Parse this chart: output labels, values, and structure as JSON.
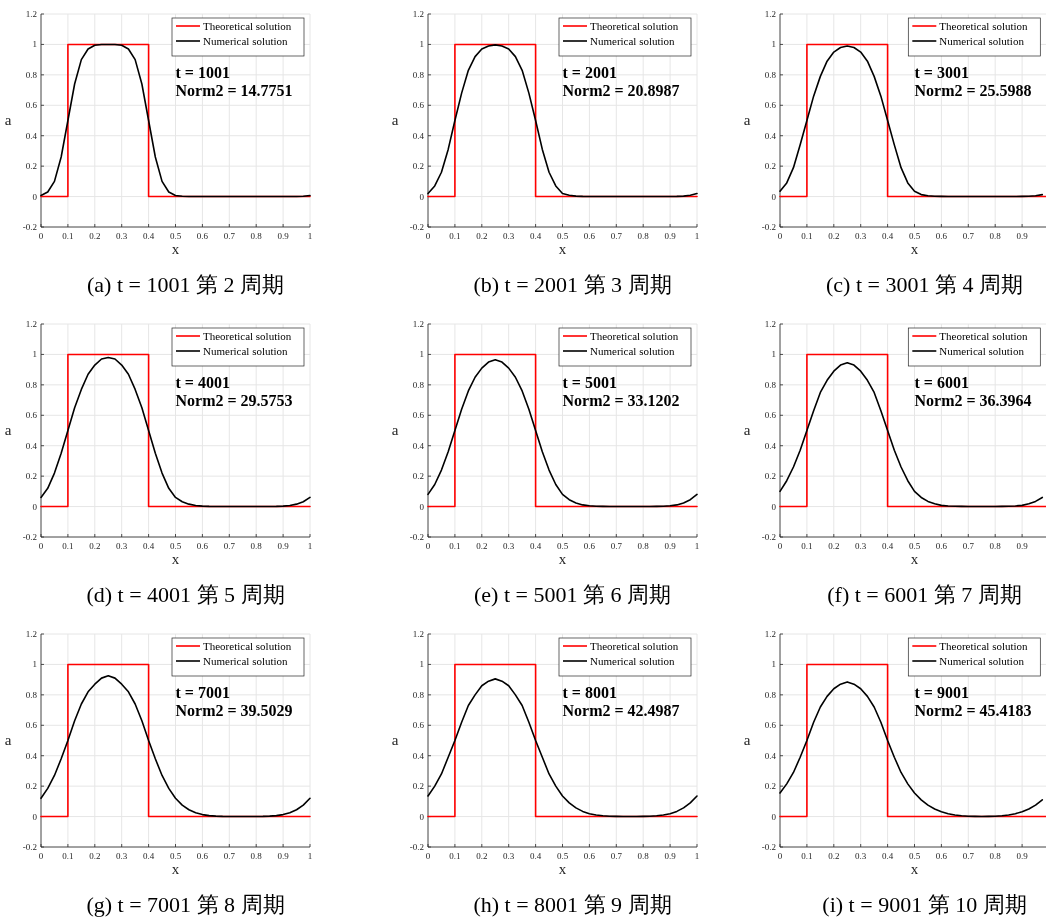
{
  "chart_data": [
    {
      "type": "line",
      "title": "(a) t = 1001 第 2 周期",
      "xlabel": "x",
      "ylabel": "a",
      "annotations": [
        "t = 1001",
        "Norm2 = 14.7751"
      ],
      "xlim": [
        0,
        1
      ],
      "ylim": [
        -0.2,
        1.2
      ],
      "xticks": [
        0,
        0.1,
        0.2,
        0.3,
        0.4,
        0.5,
        0.6,
        0.7,
        0.8,
        0.9,
        1
      ],
      "yticks": [
        -0.2,
        0,
        0.2,
        0.4,
        0.6,
        0.8,
        1,
        1.2
      ],
      "grid": true,
      "legend": "top right",
      "series": [
        {
          "name": "Theoretical solution",
          "color": "#ff0000",
          "x": [
            0,
            0.1,
            0.1,
            0.4,
            0.4,
            1
          ],
          "values": [
            0,
            0,
            1,
            1,
            0,
            0
          ]
        },
        {
          "name": "Numerical solution",
          "color": "#000000",
          "x": [
            0,
            0.025,
            0.05,
            0.075,
            0.1,
            0.125,
            0.15,
            0.175,
            0.2,
            0.225,
            0.25,
            0.275,
            0.3,
            0.325,
            0.35,
            0.375,
            0.4,
            0.425,
            0.45,
            0.475,
            0.5,
            0.525,
            0.55,
            0.575,
            0.6,
            0.625,
            0.65,
            0.675,
            0.7,
            0.725,
            0.75,
            0.775,
            0.8,
            0.825,
            0.85,
            0.875,
            0.9,
            0.925,
            0.95,
            0.975,
            1
          ],
          "values": [
            0.007,
            0.03,
            0.1,
            0.26,
            0.5,
            0.74,
            0.9,
            0.97,
            0.995,
            1.0,
            1.0,
            1.0,
            0.995,
            0.97,
            0.9,
            0.74,
            0.5,
            0.26,
            0.1,
            0.03,
            0.007,
            0.002,
            0,
            0,
            0,
            0,
            0,
            0,
            0,
            0,
            0,
            0,
            0,
            0,
            0,
            0,
            0,
            0,
            0,
            0.002,
            0.007
          ]
        }
      ]
    },
    {
      "type": "line",
      "title": "(b) t = 2001 第 3 周期",
      "xlabel": "x",
      "ylabel": "a",
      "annotations": [
        "t = 2001",
        "Norm2 = 20.8987"
      ],
      "xlim": [
        0,
        1
      ],
      "ylim": [
        -0.2,
        1.2
      ],
      "xticks": [
        0,
        0.1,
        0.2,
        0.3,
        0.4,
        0.5,
        0.6,
        0.7,
        0.8,
        0.9,
        1
      ],
      "yticks": [
        -0.2,
        0,
        0.2,
        0.4,
        0.6,
        0.8,
        1,
        1.2
      ],
      "grid": true,
      "legend": "top right",
      "series": [
        {
          "name": "Theoretical solution",
          "color": "#ff0000",
          "x": [
            0,
            0.1,
            0.1,
            0.4,
            0.4,
            1
          ],
          "values": [
            0,
            0,
            1,
            1,
            0,
            0
          ]
        },
        {
          "name": "Numerical solution",
          "color": "#000000",
          "x": [
            0,
            0.025,
            0.05,
            0.075,
            0.1,
            0.125,
            0.15,
            0.175,
            0.2,
            0.225,
            0.25,
            0.275,
            0.3,
            0.325,
            0.35,
            0.375,
            0.4,
            0.425,
            0.45,
            0.475,
            0.5,
            0.525,
            0.55,
            0.575,
            0.6,
            0.625,
            0.65,
            0.675,
            0.7,
            0.725,
            0.75,
            0.775,
            0.8,
            0.825,
            0.85,
            0.875,
            0.9,
            0.925,
            0.95,
            0.975,
            1
          ],
          "values": [
            0.02,
            0.07,
            0.16,
            0.31,
            0.5,
            0.68,
            0.83,
            0.92,
            0.97,
            0.99,
            0.997,
            0.99,
            0.97,
            0.92,
            0.83,
            0.68,
            0.5,
            0.31,
            0.16,
            0.07,
            0.02,
            0.009,
            0.003,
            0.001,
            0,
            0,
            0,
            0,
            0,
            0,
            0,
            0,
            0,
            0,
            0,
            0,
            0,
            0.001,
            0.003,
            0.009,
            0.02
          ]
        }
      ]
    },
    {
      "type": "line",
      "title": "(c) t = 3001 第 4 周期",
      "xlabel": "x",
      "ylabel": "a",
      "annotations": [
        "t = 3001",
        "Norm2 = 25.5988"
      ],
      "xlim": [
        0,
        0.99
      ],
      "ylim": [
        -0.2,
        1.2
      ],
      "xticks": [
        0,
        0.1,
        0.2,
        0.3,
        0.4,
        0.5,
        0.6,
        0.7,
        0.8,
        0.9
      ],
      "yticks": [
        -0.2,
        0,
        0.2,
        0.4,
        0.6,
        0.8,
        1,
        1.2
      ],
      "grid": true,
      "legend": "top right",
      "series": [
        {
          "name": "Theoretical solution",
          "color": "#ff0000",
          "x": [
            0,
            0.1,
            0.1,
            0.4,
            0.4,
            0.99
          ],
          "values": [
            0,
            0,
            1,
            1,
            0,
            0
          ]
        },
        {
          "name": "Numerical solution",
          "color": "#000000",
          "x": [
            0,
            0.025,
            0.05,
            0.075,
            0.1,
            0.125,
            0.15,
            0.175,
            0.2,
            0.225,
            0.25,
            0.275,
            0.3,
            0.325,
            0.35,
            0.375,
            0.4,
            0.425,
            0.45,
            0.475,
            0.5,
            0.525,
            0.55,
            0.575,
            0.6,
            0.625,
            0.65,
            0.675,
            0.7,
            0.725,
            0.75,
            0.775,
            0.8,
            0.825,
            0.85,
            0.875,
            0.9,
            0.925,
            0.95,
            0.975
          ],
          "values": [
            0.035,
            0.09,
            0.19,
            0.34,
            0.5,
            0.66,
            0.79,
            0.89,
            0.95,
            0.98,
            0.99,
            0.98,
            0.95,
            0.89,
            0.79,
            0.66,
            0.5,
            0.34,
            0.19,
            0.09,
            0.035,
            0.013,
            0.005,
            0.002,
            0.001,
            0,
            0,
            0,
            0,
            0,
            0,
            0,
            0,
            0,
            0,
            0,
            0.001,
            0.002,
            0.005,
            0.013
          ]
        }
      ]
    },
    {
      "type": "line",
      "title": "(d) t = 4001 第 5 周期",
      "xlabel": "x",
      "ylabel": "a",
      "annotations": [
        "t = 4001",
        "Norm2 = 29.5753"
      ],
      "xlim": [
        0,
        1
      ],
      "ylim": [
        -0.2,
        1.2
      ],
      "xticks": [
        0,
        0.1,
        0.2,
        0.3,
        0.4,
        0.5,
        0.6,
        0.7,
        0.8,
        0.9,
        1
      ],
      "yticks": [
        -0.2,
        0,
        0.2,
        0.4,
        0.6,
        0.8,
        1,
        1.2
      ],
      "grid": true,
      "legend": "top right",
      "series": [
        {
          "name": "Theoretical solution",
          "color": "#ff0000",
          "x": [
            0,
            0.1,
            0.1,
            0.4,
            0.4,
            1
          ],
          "values": [
            0,
            0,
            1,
            1,
            0,
            0
          ]
        },
        {
          "name": "Numerical solution",
          "color": "#000000",
          "x": [
            0,
            0.025,
            0.05,
            0.075,
            0.1,
            0.125,
            0.15,
            0.175,
            0.2,
            0.225,
            0.25,
            0.275,
            0.3,
            0.325,
            0.35,
            0.375,
            0.4,
            0.425,
            0.45,
            0.475,
            0.5,
            0.525,
            0.55,
            0.575,
            0.6,
            0.625,
            0.65,
            0.675,
            0.7,
            0.725,
            0.75,
            0.775,
            0.8,
            0.825,
            0.85,
            0.875,
            0.9,
            0.925,
            0.95,
            0.975,
            1
          ],
          "values": [
            0.06,
            0.12,
            0.22,
            0.35,
            0.5,
            0.65,
            0.77,
            0.87,
            0.93,
            0.97,
            0.98,
            0.97,
            0.93,
            0.87,
            0.77,
            0.65,
            0.5,
            0.35,
            0.22,
            0.12,
            0.06,
            0.032,
            0.016,
            0.007,
            0.003,
            0.001,
            0,
            0,
            0,
            0,
            0,
            0,
            0,
            0,
            0,
            0.001,
            0.003,
            0.007,
            0.016,
            0.032,
            0.06
          ]
        }
      ]
    },
    {
      "type": "line",
      "title": "(e) t = 5001 第 6 周期",
      "xlabel": "x",
      "ylabel": "a",
      "annotations": [
        "t = 5001",
        "Norm2 = 33.1202"
      ],
      "xlim": [
        0,
        1
      ],
      "ylim": [
        -0.2,
        1.2
      ],
      "xticks": [
        0,
        0.1,
        0.2,
        0.3,
        0.4,
        0.5,
        0.6,
        0.7,
        0.8,
        0.9,
        1
      ],
      "yticks": [
        -0.2,
        0,
        0.2,
        0.4,
        0.6,
        0.8,
        1,
        1.2
      ],
      "grid": true,
      "legend": "top right",
      "series": [
        {
          "name": "Theoretical solution",
          "color": "#ff0000",
          "x": [
            0,
            0.1,
            0.1,
            0.4,
            0.4,
            1
          ],
          "values": [
            0,
            0,
            1,
            1,
            0,
            0
          ]
        },
        {
          "name": "Numerical solution",
          "color": "#000000",
          "x": [
            0,
            0.025,
            0.05,
            0.075,
            0.1,
            0.125,
            0.15,
            0.175,
            0.2,
            0.225,
            0.25,
            0.275,
            0.3,
            0.325,
            0.35,
            0.375,
            0.4,
            0.425,
            0.45,
            0.475,
            0.5,
            0.525,
            0.55,
            0.575,
            0.6,
            0.625,
            0.65,
            0.675,
            0.7,
            0.725,
            0.75,
            0.775,
            0.8,
            0.825,
            0.85,
            0.875,
            0.9,
            0.925,
            0.95,
            0.975,
            1
          ],
          "values": [
            0.08,
            0.145,
            0.24,
            0.36,
            0.5,
            0.64,
            0.76,
            0.85,
            0.91,
            0.95,
            0.965,
            0.95,
            0.91,
            0.85,
            0.76,
            0.64,
            0.5,
            0.36,
            0.24,
            0.145,
            0.08,
            0.045,
            0.024,
            0.011,
            0.005,
            0.002,
            0.001,
            0,
            0,
            0,
            0,
            0,
            0,
            0,
            0.001,
            0.002,
            0.005,
            0.011,
            0.024,
            0.045,
            0.08
          ]
        }
      ]
    },
    {
      "type": "line",
      "title": "(f) t = 6001 第 7 周期",
      "xlabel": "x",
      "ylabel": "a",
      "annotations": [
        "t = 6001",
        "Norm2 = 36.3964"
      ],
      "xlim": [
        0,
        0.99
      ],
      "ylim": [
        -0.2,
        1.2
      ],
      "xticks": [
        0,
        0.1,
        0.2,
        0.3,
        0.4,
        0.5,
        0.6,
        0.7,
        0.8,
        0.9
      ],
      "yticks": [
        -0.2,
        0,
        0.2,
        0.4,
        0.6,
        0.8,
        1,
        1.2
      ],
      "grid": true,
      "legend": "top right",
      "series": [
        {
          "name": "Theoretical solution",
          "color": "#ff0000",
          "x": [
            0,
            0.1,
            0.1,
            0.4,
            0.4,
            0.99
          ],
          "values": [
            0,
            0,
            1,
            1,
            0,
            0
          ]
        },
        {
          "name": "Numerical solution",
          "color": "#000000",
          "x": [
            0,
            0.025,
            0.05,
            0.075,
            0.1,
            0.125,
            0.15,
            0.175,
            0.2,
            0.225,
            0.25,
            0.275,
            0.3,
            0.325,
            0.35,
            0.375,
            0.4,
            0.425,
            0.45,
            0.475,
            0.5,
            0.525,
            0.55,
            0.575,
            0.6,
            0.625,
            0.65,
            0.675,
            0.7,
            0.725,
            0.75,
            0.775,
            0.8,
            0.825,
            0.85,
            0.875,
            0.9,
            0.925,
            0.95,
            0.975
          ],
          "values": [
            0.1,
            0.17,
            0.26,
            0.37,
            0.5,
            0.63,
            0.75,
            0.83,
            0.89,
            0.93,
            0.945,
            0.93,
            0.89,
            0.83,
            0.75,
            0.63,
            0.5,
            0.37,
            0.26,
            0.17,
            0.1,
            0.06,
            0.034,
            0.018,
            0.008,
            0.004,
            0.002,
            0.001,
            0,
            0,
            0,
            0,
            0,
            0.001,
            0.002,
            0.004,
            0.008,
            0.018,
            0.034,
            0.06
          ]
        }
      ]
    },
    {
      "type": "line",
      "title": "(g) t = 7001 第 8 周期",
      "xlabel": "x",
      "ylabel": "a",
      "annotations": [
        "t = 7001",
        "Norm2 = 39.5029"
      ],
      "xlim": [
        0,
        1
      ],
      "ylim": [
        -0.2,
        1.2
      ],
      "xticks": [
        0,
        0.1,
        0.2,
        0.3,
        0.4,
        0.5,
        0.6,
        0.7,
        0.8,
        0.9,
        1
      ],
      "yticks": [
        -0.2,
        0,
        0.2,
        0.4,
        0.6,
        0.8,
        1,
        1.2
      ],
      "grid": true,
      "legend": "top right",
      "series": [
        {
          "name": "Theoretical solution",
          "color": "#ff0000",
          "x": [
            0,
            0.1,
            0.1,
            0.4,
            0.4,
            1
          ],
          "values": [
            0,
            0,
            1,
            1,
            0,
            0
          ]
        },
        {
          "name": "Numerical solution",
          "color": "#000000",
          "x": [
            0,
            0.025,
            0.05,
            0.075,
            0.1,
            0.125,
            0.15,
            0.175,
            0.2,
            0.225,
            0.25,
            0.275,
            0.3,
            0.325,
            0.35,
            0.375,
            0.4,
            0.425,
            0.45,
            0.475,
            0.5,
            0.525,
            0.55,
            0.575,
            0.6,
            0.625,
            0.65,
            0.675,
            0.7,
            0.725,
            0.75,
            0.775,
            0.8,
            0.825,
            0.85,
            0.875,
            0.9,
            0.925,
            0.95,
            0.975,
            1
          ],
          "values": [
            0.12,
            0.185,
            0.27,
            0.38,
            0.5,
            0.63,
            0.74,
            0.82,
            0.87,
            0.91,
            0.925,
            0.91,
            0.87,
            0.82,
            0.74,
            0.63,
            0.5,
            0.38,
            0.27,
            0.185,
            0.12,
            0.075,
            0.045,
            0.025,
            0.013,
            0.006,
            0.003,
            0.001,
            0,
            0,
            0,
            0,
            0,
            0.001,
            0.003,
            0.006,
            0.013,
            0.025,
            0.045,
            0.075,
            0.12
          ]
        }
      ]
    },
    {
      "type": "line",
      "title": "(h) t = 8001 第 9 周期",
      "xlabel": "x",
      "ylabel": "a",
      "annotations": [
        "t = 8001",
        "Norm2 = 42.4987"
      ],
      "xlim": [
        0,
        1
      ],
      "ylim": [
        -0.2,
        1.2
      ],
      "xticks": [
        0,
        0.1,
        0.2,
        0.3,
        0.4,
        0.5,
        0.6,
        0.7,
        0.8,
        0.9,
        1
      ],
      "yticks": [
        -0.2,
        0,
        0.2,
        0.4,
        0.6,
        0.8,
        1,
        1.2
      ],
      "grid": true,
      "legend": "top right",
      "series": [
        {
          "name": "Theoretical solution",
          "color": "#ff0000",
          "x": [
            0,
            0.1,
            0.1,
            0.4,
            0.4,
            1
          ],
          "values": [
            0,
            0,
            1,
            1,
            0,
            0
          ]
        },
        {
          "name": "Numerical solution",
          "color": "#000000",
          "x": [
            0,
            0.025,
            0.05,
            0.075,
            0.1,
            0.125,
            0.15,
            0.175,
            0.2,
            0.225,
            0.25,
            0.275,
            0.3,
            0.325,
            0.35,
            0.375,
            0.4,
            0.425,
            0.45,
            0.475,
            0.5,
            0.525,
            0.55,
            0.575,
            0.6,
            0.625,
            0.65,
            0.675,
            0.7,
            0.725,
            0.75,
            0.775,
            0.8,
            0.825,
            0.85,
            0.875,
            0.9,
            0.925,
            0.95,
            0.975,
            1
          ],
          "values": [
            0.135,
            0.2,
            0.28,
            0.39,
            0.5,
            0.62,
            0.73,
            0.8,
            0.86,
            0.89,
            0.905,
            0.89,
            0.86,
            0.8,
            0.73,
            0.62,
            0.5,
            0.39,
            0.28,
            0.2,
            0.135,
            0.09,
            0.057,
            0.034,
            0.019,
            0.01,
            0.005,
            0.002,
            0.001,
            0,
            0,
            0,
            0.001,
            0.002,
            0.005,
            0.01,
            0.019,
            0.034,
            0.057,
            0.09,
            0.135
          ]
        }
      ]
    },
    {
      "type": "line",
      "title": "(i) t = 9001 第 10 周期",
      "xlabel": "x",
      "ylabel": "a",
      "annotations": [
        "t = 9001",
        "Norm2 = 45.4183"
      ],
      "xlim": [
        0,
        0.99
      ],
      "ylim": [
        -0.2,
        1.2
      ],
      "xticks": [
        0,
        0.1,
        0.2,
        0.3,
        0.4,
        0.5,
        0.6,
        0.7,
        0.8,
        0.9
      ],
      "yticks": [
        -0.2,
        0,
        0.2,
        0.4,
        0.6,
        0.8,
        1,
        1.2
      ],
      "grid": true,
      "legend": "top right",
      "series": [
        {
          "name": "Theoretical solution",
          "color": "#ff0000",
          "x": [
            0,
            0.1,
            0.1,
            0.4,
            0.4,
            0.99
          ],
          "values": [
            0,
            0,
            1,
            1,
            0,
            0
          ]
        },
        {
          "name": "Numerical solution",
          "color": "#000000",
          "x": [
            0,
            0.025,
            0.05,
            0.075,
            0.1,
            0.125,
            0.15,
            0.175,
            0.2,
            0.225,
            0.25,
            0.275,
            0.3,
            0.325,
            0.35,
            0.375,
            0.4,
            0.425,
            0.45,
            0.475,
            0.5,
            0.525,
            0.55,
            0.575,
            0.6,
            0.625,
            0.65,
            0.675,
            0.7,
            0.725,
            0.75,
            0.775,
            0.8,
            0.825,
            0.85,
            0.875,
            0.9,
            0.925,
            0.95,
            0.975
          ],
          "values": [
            0.155,
            0.215,
            0.29,
            0.39,
            0.5,
            0.62,
            0.72,
            0.79,
            0.84,
            0.87,
            0.885,
            0.87,
            0.84,
            0.79,
            0.72,
            0.62,
            0.5,
            0.39,
            0.29,
            0.215,
            0.155,
            0.11,
            0.075,
            0.05,
            0.032,
            0.019,
            0.01,
            0.005,
            0.002,
            0.001,
            0,
            0.001,
            0.002,
            0.005,
            0.01,
            0.019,
            0.032,
            0.05,
            0.075,
            0.11
          ]
        }
      ]
    }
  ]
}
